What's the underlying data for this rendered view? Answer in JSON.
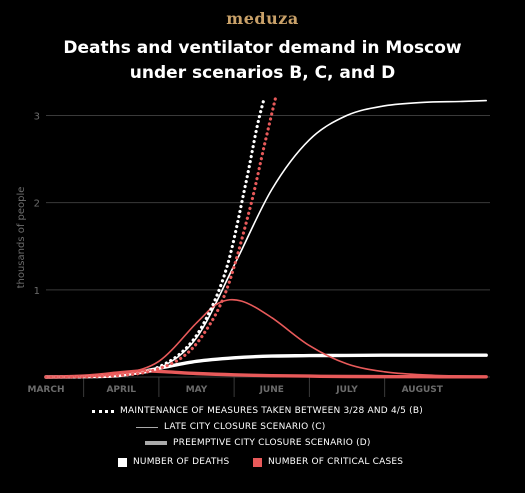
{
  "header": {
    "brand": "meduza",
    "title_line1": "Deaths and ventilator demand in Moscow",
    "title_line2": "under scenarios B, C, and D"
  },
  "colors": {
    "background": "#000000",
    "deaths": "#ffffff",
    "critical": "#e85a5a",
    "grid": "#3a3a3a",
    "axis_text": "#6b6b6b",
    "brand": "#c9a169"
  },
  "legend": {
    "scenario_b": "MAINTENANCE OF MEASURES TAKEN BETWEEN 3/28 AND 4/5 (B)",
    "scenario_c": "LATE CITY CLOSURE SCENARIO (C)",
    "scenario_d": "PREEMPTIVE CITY CLOSURE SCENARIO (D)",
    "deaths": "NUMBER OF DEATHS",
    "critical": "NUMBER OF CRITICAL CASES"
  },
  "chart_data": {
    "type": "line",
    "ylabel": "thousands of people",
    "xlabel": "",
    "x_ticks": [
      "MARCH",
      "APRIL",
      "MAY",
      "JUNE",
      "JULY",
      "AUGUST"
    ],
    "y_ticks": [
      1,
      2,
      3
    ],
    "xlim": [
      0,
      5.9
    ],
    "ylim": [
      0,
      3.2
    ],
    "grid": true,
    "legend_position": "bottom",
    "series": [
      {
        "name": "MAINTENANCE OF MEASURES TAKEN BETWEEN 3/28 AND 4/5 (B)",
        "metric": "NUMBER OF DEATHS",
        "style": "dotted",
        "x": [
          0,
          0.5,
          1.0,
          1.4,
          1.8,
          2.1,
          2.4,
          2.65,
          2.8,
          2.9
        ],
        "y": [
          0,
          0.002,
          0.02,
          0.08,
          0.28,
          0.62,
          1.25,
          2.2,
          2.85,
          3.2
        ]
      },
      {
        "name": "MAINTENANCE OF MEASURES TAKEN BETWEEN 3/28 AND 4/5 (B)",
        "metric": "NUMBER OF CRITICAL CASES",
        "style": "dotted",
        "x": [
          0,
          0.5,
          1.0,
          1.4,
          1.8,
          2.1,
          2.4,
          2.7,
          2.9,
          3.05
        ],
        "y": [
          0,
          0.002,
          0.02,
          0.07,
          0.22,
          0.5,
          1.0,
          1.9,
          2.65,
          3.2
        ]
      },
      {
        "name": "LATE CITY CLOSURE SCENARIO (C)",
        "metric": "NUMBER OF DEATHS",
        "style": "solid",
        "x": [
          0,
          0.5,
          1.0,
          1.5,
          2.0,
          2.5,
          3.0,
          3.5,
          4.0,
          4.5,
          5.0,
          5.5,
          5.85
        ],
        "y": [
          0,
          0.003,
          0.02,
          0.1,
          0.45,
          1.28,
          2.15,
          2.72,
          3.0,
          3.11,
          3.15,
          3.16,
          3.17
        ]
      },
      {
        "name": "LATE CITY CLOSURE SCENARIO (C)",
        "metric": "NUMBER OF CRITICAL CASES",
        "style": "solid",
        "x": [
          0,
          0.5,
          1.0,
          1.5,
          2.0,
          2.3,
          2.6,
          3.0,
          3.5,
          4.0,
          4.5,
          5.0,
          5.5,
          5.85
        ],
        "y": [
          0,
          0.005,
          0.04,
          0.18,
          0.62,
          0.85,
          0.87,
          0.68,
          0.36,
          0.15,
          0.06,
          0.025,
          0.01,
          0.005
        ]
      },
      {
        "name": "PREEMPTIVE CITY CLOSURE SCENARIO (D)",
        "metric": "NUMBER OF DEATHS",
        "style": "thick",
        "x": [
          0,
          0.5,
          1.0,
          1.5,
          2.0,
          2.5,
          3.0,
          3.5,
          4.0,
          4.5,
          5.0,
          5.5,
          5.85
        ],
        "y": [
          0,
          0.003,
          0.02,
          0.1,
          0.18,
          0.22,
          0.24,
          0.245,
          0.248,
          0.25,
          0.25,
          0.25,
          0.25
        ]
      },
      {
        "name": "PREEMPTIVE CITY CLOSURE SCENARIO (D)",
        "metric": "NUMBER OF CRITICAL CASES",
        "style": "thick",
        "x": [
          0,
          0.5,
          1.0,
          1.3,
          1.6,
          2.0,
          2.5,
          3.0,
          3.5,
          4.0,
          5.0,
          5.85
        ],
        "y": [
          0,
          0.01,
          0.05,
          0.07,
          0.06,
          0.04,
          0.025,
          0.015,
          0.01,
          0.006,
          0.003,
          0.002
        ]
      }
    ]
  }
}
